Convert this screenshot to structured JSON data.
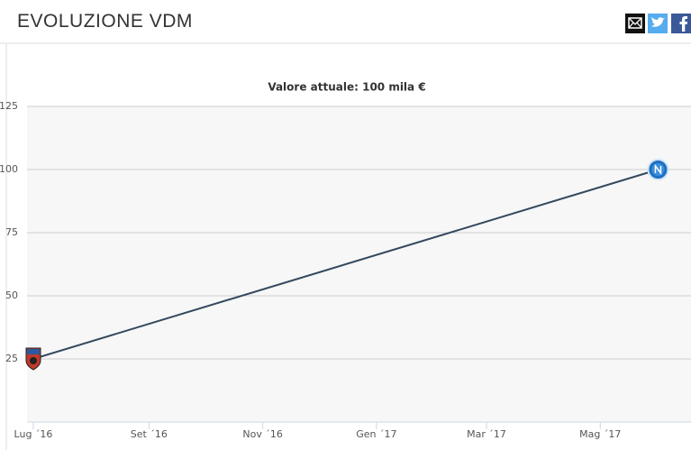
{
  "header": {
    "title": "EVOLUZIONE VDM"
  },
  "chart_data": {
    "type": "line",
    "subtitle": "Valore attuale: 100 mila €",
    "x": [
      "2016-07",
      "2017-06"
    ],
    "series": [
      {
        "color": "#34495e",
        "values": [
          25,
          100
        ]
      }
    ],
    "ylim": [
      0,
      125
    ],
    "yticks": [
      25,
      50,
      75,
      100,
      125
    ],
    "xticks": [
      {
        "value": "2016-07",
        "label": "Lug ´16"
      },
      {
        "value": "2016-09",
        "label": "Set ´16"
      },
      {
        "value": "2016-11",
        "label": "Nov ´16"
      },
      {
        "value": "2017-01",
        "label": "Gen ´17"
      },
      {
        "value": "2017-03",
        "label": "Mar ´17"
      },
      {
        "value": "2017-05",
        "label": "Mag ´17"
      }
    ],
    "grid": true
  }
}
